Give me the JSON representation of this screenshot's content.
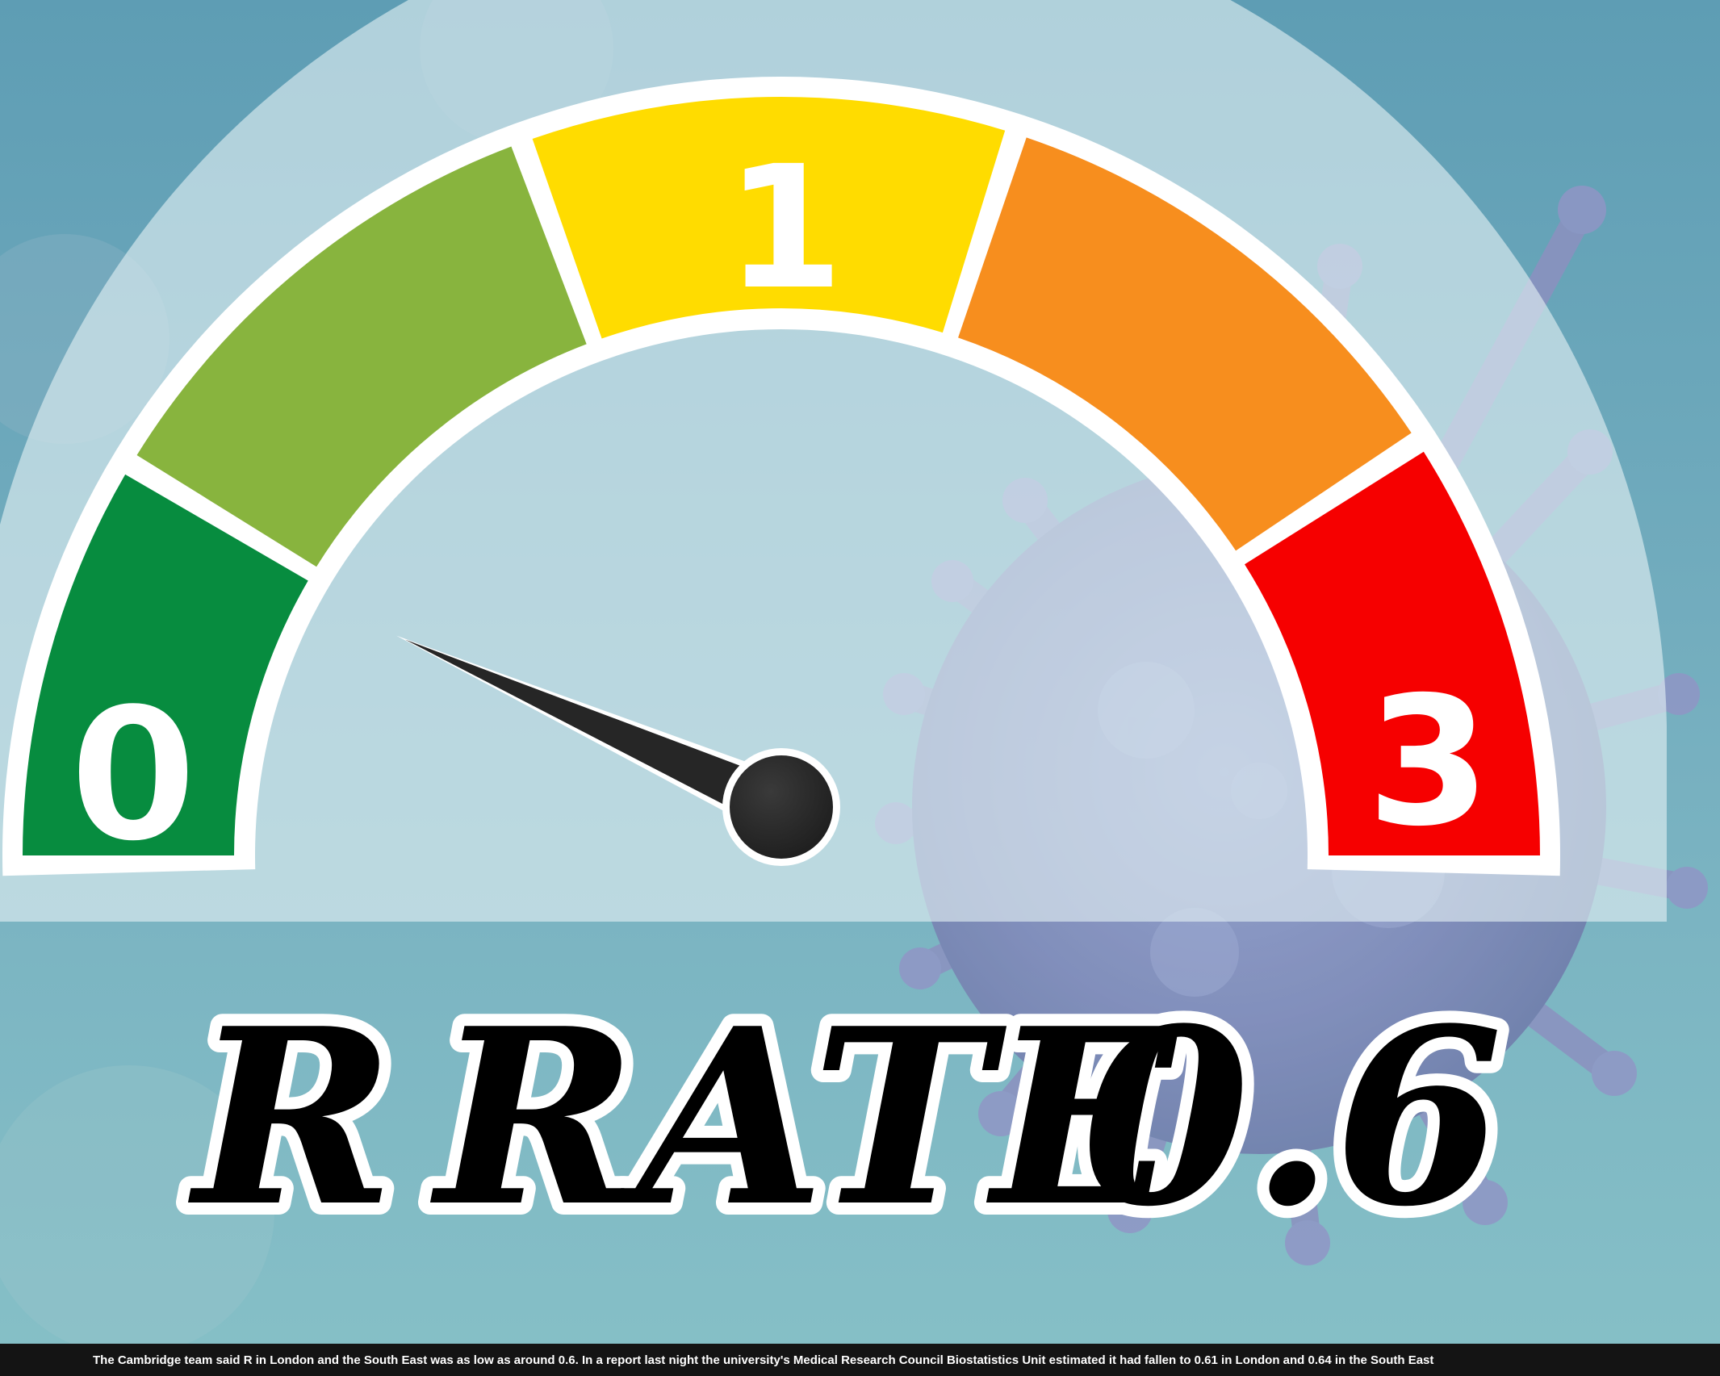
{
  "headline": {
    "label": "R",
    "word": "RATE",
    "value": "0.6"
  },
  "gauge": {
    "min_label": "0",
    "mid_label": "1",
    "max_label": "3",
    "needle_value": 0.6,
    "bands": [
      {
        "name": "dark-green",
        "color": "#078c3f"
      },
      {
        "name": "light-green",
        "color": "#88b43e"
      },
      {
        "name": "yellow",
        "color": "#ffdc00"
      },
      {
        "name": "orange",
        "color": "#f78e1e"
      },
      {
        "name": "red",
        "color": "#f60000"
      }
    ],
    "needle_color": "#262626"
  },
  "caption": "The Cambridge team said R in London and the South East was as low as around 0.6. In a report last night the university's Medical Research Council Biostatistics Unit estimated it had fallen to 0.61 in London and 0.64 in the South East",
  "colors": {
    "background_top": "#5e9db4",
    "background_bottom": "#7fb8c4",
    "virus": "#8a8fbf",
    "panel": "#dcecf0",
    "caption_bar": "#141414"
  }
}
